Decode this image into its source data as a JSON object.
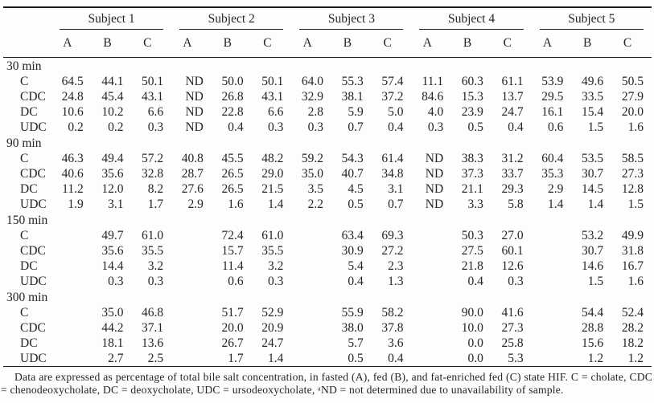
{
  "table": {
    "corner_label": "",
    "subjects": [
      "Subject 1",
      "Subject 2",
      "Subject 3",
      "Subject 4",
      "Subject 5"
    ],
    "conditions": [
      "A",
      "B",
      "C"
    ],
    "sections": [
      {
        "time": "30 min",
        "rows": [
          {
            "label": "C",
            "values": [
              "64.5",
              "44.1",
              "50.1",
              "ND",
              "50.0",
              "50.1",
              "64.0",
              "55.3",
              "57.4",
              "11.1",
              "60.3",
              "61.1",
              "53.9",
              "49.6",
              "50.5"
            ]
          },
          {
            "label": "CDC",
            "values": [
              "24.8",
              "45.4",
              "43.1",
              "ND",
              "26.8",
              "43.1",
              "32.9",
              "38.1",
              "37.2",
              "84.6",
              "15.3",
              "13.7",
              "29.5",
              "33.5",
              "27.9"
            ]
          },
          {
            "label": "DC",
            "values": [
              "10.6",
              "10.2",
              "6.6",
              "ND",
              "22.8",
              "6.6",
              "2.8",
              "5.9",
              "5.0",
              "4.0",
              "23.9",
              "24.7",
              "16.1",
              "15.4",
              "20.0"
            ]
          },
          {
            "label": "UDC",
            "values": [
              "0.2",
              "0.2",
              "0.3",
              "ND",
              "0.4",
              "0.3",
              "0.3",
              "0.7",
              "0.4",
              "0.3",
              "0.5",
              "0.4",
              "0.6",
              "1.5",
              "1.6"
            ]
          }
        ]
      },
      {
        "time": "90 min",
        "rows": [
          {
            "label": "C",
            "values": [
              "46.3",
              "49.4",
              "57.2",
              "40.8",
              "45.5",
              "48.2",
              "59.2",
              "54.3",
              "61.4",
              "ND",
              "38.3",
              "31.2",
              "60.4",
              "53.5",
              "58.5"
            ]
          },
          {
            "label": "CDC",
            "values": [
              "40.6",
              "35.6",
              "32.8",
              "28.7",
              "26.5",
              "29.0",
              "35.0",
              "40.7",
              "34.8",
              "ND",
              "37.3",
              "33.7",
              "35.3",
              "30.7",
              "27.3"
            ]
          },
          {
            "label": "DC",
            "values": [
              "11.2",
              "12.0",
              "8.2",
              "27.6",
              "26.5",
              "21.5",
              "3.5",
              "4.5",
              "3.1",
              "ND",
              "21.1",
              "29.3",
              "2.9",
              "14.5",
              "12.8"
            ]
          },
          {
            "label": "UDC",
            "values": [
              "1.9",
              "3.1",
              "1.7",
              "2.9",
              "1.6",
              "1.4",
              "2.2",
              "0.5",
              "0.7",
              "ND",
              "3.3",
              "5.8",
              "1.4",
              "1.4",
              "1.5"
            ]
          }
        ]
      },
      {
        "time": "150 min",
        "rows": [
          {
            "label": "C",
            "values": [
              "",
              "49.7",
              "61.0",
              "",
              "72.4",
              "61.0",
              "",
              "63.4",
              "69.3",
              "",
              "50.3",
              "27.0",
              "",
              "53.2",
              "49.9"
            ]
          },
          {
            "label": "CDC",
            "values": [
              "",
              "35.6",
              "35.5",
              "",
              "15.7",
              "35.5",
              "",
              "30.9",
              "27.2",
              "",
              "27.5",
              "60.1",
              "",
              "30.7",
              "31.8"
            ]
          },
          {
            "label": "DC",
            "values": [
              "",
              "14.4",
              "3.2",
              "",
              "11.4",
              "3.2",
              "",
              "5.4",
              "2.3",
              "",
              "21.8",
              "12.6",
              "",
              "14.6",
              "16.7"
            ]
          },
          {
            "label": "UDC",
            "values": [
              "",
              "0.3",
              "0.3",
              "",
              "0.6",
              "0.3",
              "",
              "0.4",
              "1.3",
              "",
              "0.4",
              "0.3",
              "",
              "1.5",
              "1.6"
            ]
          }
        ]
      },
      {
        "time": "300 min",
        "rows": [
          {
            "label": "C",
            "values": [
              "",
              "35.0",
              "46.8",
              "",
              "51.7",
              "52.9",
              "",
              "55.9",
              "58.2",
              "",
              "90.0",
              "41.6",
              "",
              "54.4",
              "52.4"
            ]
          },
          {
            "label": "CDC",
            "values": [
              "",
              "44.2",
              "37.1",
              "",
              "20.0",
              "20.9",
              "",
              "38.0",
              "37.8",
              "",
              "10.0",
              "27.3",
              "",
              "28.8",
              "28.2"
            ]
          },
          {
            "label": "DC",
            "values": [
              "",
              "18.1",
              "13.6",
              "",
              "26.7",
              "24.7",
              "",
              "5.7",
              "3.6",
              "",
              "0.0",
              "25.8",
              "",
              "15.6",
              "18.2"
            ]
          },
          {
            "label": "UDC",
            "values": [
              "",
              "2.7",
              "2.5",
              "",
              "1.7",
              "1.4",
              "",
              "0.5",
              "0.4",
              "",
              "0.0",
              "5.3",
              "",
              "1.2",
              "1.2"
            ]
          }
        ]
      }
    ]
  },
  "footnote": "Data are expressed as percentage of total bile salt concentration, in fasted (A), fed (B), and fat-enriched fed (C) state HIF. C = cholate, CDC = chenodeoxycholate, DC = deoxycholate, UDC = ursodeoxycholate, ᵃND = not determined due to unavailability of sample."
}
